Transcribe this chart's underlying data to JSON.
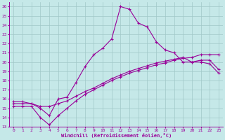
{
  "xlabel": "Windchill (Refroidissement éolien,°C)",
  "bg_color": "#c5e8e8",
  "grid_color": "#a0c8c8",
  "line_color": "#990099",
  "xlim": [
    -0.5,
    23.5
  ],
  "ylim": [
    13,
    26.5
  ],
  "xticks": [
    0,
    1,
    2,
    3,
    4,
    5,
    6,
    7,
    8,
    9,
    10,
    11,
    12,
    13,
    14,
    15,
    16,
    17,
    18,
    19,
    20,
    21,
    22,
    23
  ],
  "yticks": [
    13,
    14,
    15,
    16,
    17,
    18,
    19,
    20,
    21,
    22,
    23,
    24,
    25,
    26
  ],
  "line1_x": [
    0,
    1,
    2,
    3,
    4,
    5,
    6,
    7,
    8,
    9,
    10,
    11,
    12,
    13,
    14,
    15,
    16,
    17,
    18,
    19,
    20,
    21,
    22,
    23
  ],
  "line1_y": [
    15.7,
    15.7,
    15.5,
    15.0,
    14.2,
    16.0,
    16.2,
    17.8,
    19.5,
    20.8,
    21.5,
    22.5,
    26.0,
    25.7,
    24.2,
    23.8,
    22.2,
    21.3,
    21.0,
    20.0,
    20.0,
    20.0,
    19.8,
    18.8
  ],
  "line2_x": [
    0,
    1,
    2,
    3,
    4,
    5,
    6,
    7,
    8,
    9,
    10,
    11,
    12,
    13,
    14,
    15,
    16,
    17,
    18,
    19,
    20,
    21,
    22,
    23
  ],
  "line2_y": [
    15.5,
    15.5,
    15.5,
    15.2,
    15.2,
    15.5,
    15.8,
    16.3,
    16.8,
    17.2,
    17.7,
    18.2,
    18.6,
    19.0,
    19.3,
    19.6,
    19.9,
    20.1,
    20.3,
    20.5,
    20.0,
    20.2,
    20.2,
    19.2
  ],
  "line3_x": [
    0,
    1,
    2,
    3,
    4,
    5,
    6,
    7,
    8,
    9,
    10,
    11,
    12,
    13,
    14,
    15,
    16,
    17,
    18,
    19,
    20,
    21,
    22,
    23
  ],
  "line3_y": [
    15.2,
    15.2,
    15.2,
    14.0,
    13.2,
    14.2,
    15.0,
    15.8,
    16.5,
    17.0,
    17.5,
    18.0,
    18.4,
    18.8,
    19.1,
    19.4,
    19.7,
    19.9,
    20.2,
    20.4,
    20.5,
    20.8,
    20.8,
    20.8
  ]
}
